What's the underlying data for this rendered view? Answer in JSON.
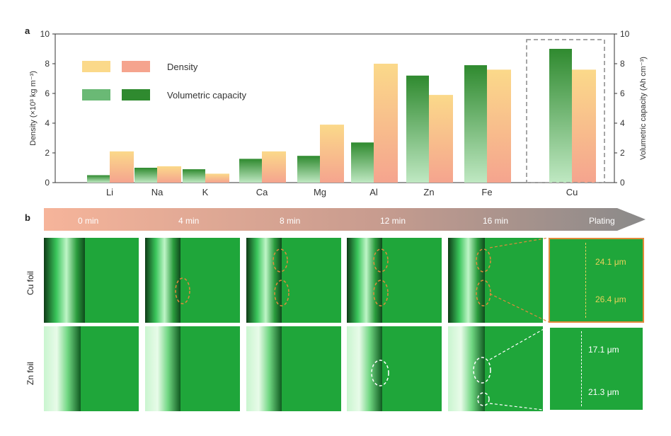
{
  "panel_a_label": "a",
  "panel_b_label": "b",
  "chart_data": {
    "type": "bar",
    "categories": [
      "Li",
      "Na",
      "K",
      "Ca",
      "Mg",
      "Al",
      "Zn",
      "Fe",
      "Cu"
    ],
    "series": [
      {
        "name": "Volumetric capacity",
        "values": [
          0.5,
          1.0,
          0.9,
          1.6,
          1.8,
          2.7,
          7.2,
          7.9,
          9.0
        ],
        "axis": "right"
      },
      {
        "name": "Density",
        "values": [
          2.1,
          1.1,
          0.6,
          2.1,
          3.9,
          8.0,
          5.9,
          7.6,
          7.6
        ],
        "axis": "left"
      }
    ],
    "ylabel": "Density (×10³ kg m⁻³)",
    "ylabel_right": "Volumetric capacity (Ah cm⁻³)",
    "ylim": [
      0,
      10
    ],
    "ylim_right": [
      0,
      10
    ],
    "yticks": [
      "0",
      "2",
      "4",
      "6",
      "8",
      "10"
    ],
    "legend": {
      "placement": "top-left",
      "entries": [
        "Density",
        "Volumetric capacity"
      ]
    },
    "highlight_category": "Cu",
    "colors": {
      "density_light": "#fbd98a",
      "density_dark": "#f5a48e",
      "capacity_light": "#7fc98a",
      "capacity_dark": "#2f8a2f"
    }
  },
  "panel_b": {
    "times": [
      "0 min",
      "4 min",
      "8 min",
      "12 min",
      "16 min"
    ],
    "end_label": "Plating",
    "rows": [
      "Cu foil",
      "Zn foil"
    ],
    "cu_zoom": [
      "24.1 μm",
      "26.4 μm"
    ],
    "zn_zoom": [
      "17.1 μm",
      "21.3 μm"
    ],
    "arrow_colors": {
      "start": "#f4b49a",
      "end": "#8a8a8a"
    }
  }
}
